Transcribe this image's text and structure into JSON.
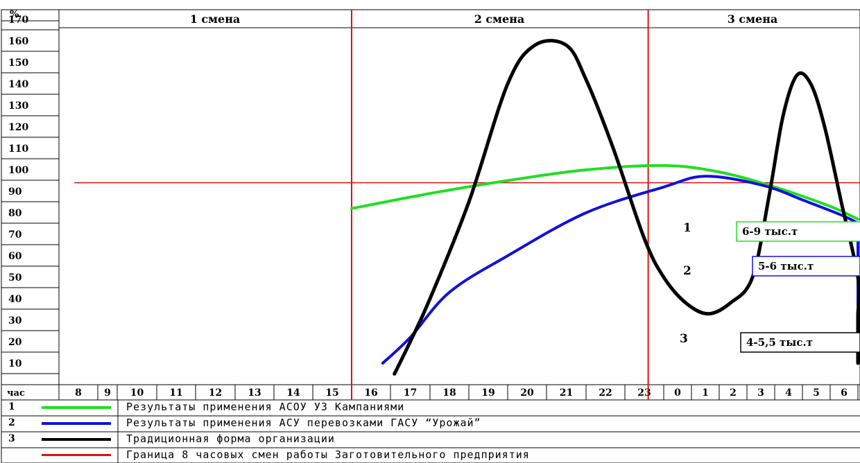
{
  "chart_data": {
    "type": "line",
    "y_axis_unit_label": "%",
    "x_axis_unit_label": "час",
    "y_ticks": [
      10,
      20,
      30,
      40,
      50,
      60,
      70,
      80,
      90,
      100,
      110,
      120,
      130,
      140,
      150,
      160,
      170
    ],
    "x_ticks": [
      "8",
      "9",
      "10",
      "11",
      "12",
      "13",
      "14",
      "15",
      "16",
      "17",
      "18",
      "19",
      "20",
      "21",
      "22",
      "23",
      "0",
      "1",
      "2",
      "3",
      "4",
      "5",
      "6"
    ],
    "shifts": [
      "1 смена",
      "2 смена",
      "3 смена"
    ],
    "shift_boundaries_at_hour_index": [
      8,
      15.6
    ],
    "reference_line_y": 94,
    "ylim": [
      0,
      175
    ],
    "series": [
      {
        "id": "1",
        "color": "#22dd22",
        "capacity_label": "6-9 тыс.т",
        "points": [
          [
            8,
            82
          ],
          [
            10,
            89
          ],
          [
            12,
            95
          ],
          [
            14,
            100
          ],
          [
            16,
            102
          ],
          [
            18,
            99
          ],
          [
            20,
            92
          ],
          [
            22,
            83
          ],
          [
            23.5,
            77
          ]
        ]
      },
      {
        "id": "2",
        "color": "#1111dd",
        "capacity_label": "5-6 тыс.т",
        "points": [
          [
            8.8,
            10
          ],
          [
            9.5,
            22
          ],
          [
            10.5,
            43
          ],
          [
            12,
            60
          ],
          [
            14,
            80
          ],
          [
            16,
            92
          ],
          [
            17.5,
            97
          ],
          [
            19.5,
            93
          ],
          [
            21,
            86
          ],
          [
            23,
            75
          ],
          [
            24.5,
            67
          ],
          [
            26,
            57
          ],
          [
            28,
            45
          ],
          [
            29.2,
            37
          ]
        ]
      },
      {
        "id": "3",
        "color": "#000000",
        "capacity_label": "4-5,5 тыс.т",
        "points": [
          [
            9.1,
            5
          ],
          [
            9.5,
            20
          ],
          [
            10,
            40
          ],
          [
            11,
            85
          ],
          [
            12,
            140
          ],
          [
            12.7,
            158
          ],
          [
            13.5,
            158
          ],
          [
            14,
            142
          ],
          [
            14.7,
            110
          ],
          [
            15.5,
            68
          ],
          [
            16,
            50
          ],
          [
            16.8,
            38
          ],
          [
            17.6,
            33
          ],
          [
            18.4,
            38
          ],
          [
            19.2,
            50
          ],
          [
            19.8,
            88
          ],
          [
            20.3,
            125
          ],
          [
            20.8,
            144
          ],
          [
            21.3,
            140
          ],
          [
            21.8,
            120
          ],
          [
            22.4,
            85
          ],
          [
            23,
            50
          ],
          [
            23.5,
            32
          ],
          [
            24.2,
            20
          ],
          [
            25.5,
            15
          ],
          [
            27,
            13
          ],
          [
            29.4,
            10
          ]
        ]
      },
      {
        "id": "red",
        "color": "#dd1111"
      }
    ]
  },
  "legend": [
    {
      "num": "1",
      "text": "Результаты применения АСОУ  УЗ Кампаниями"
    },
    {
      "num": "2",
      "text": "Результаты применения  АСУ перевозками ГАСУ “Урожай”"
    },
    {
      "num": "3",
      "text": "Традиционная форма организации"
    },
    {
      "num": "",
      "text": "Граница 8 часовых смен работы Заготовительного предприятия"
    }
  ]
}
